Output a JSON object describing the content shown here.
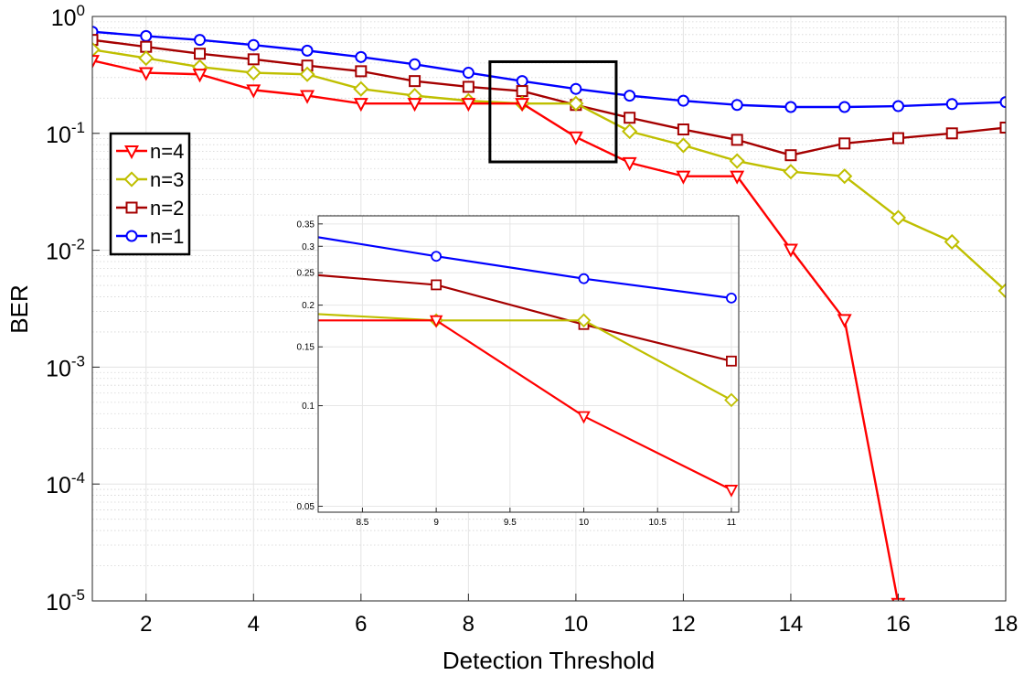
{
  "chart_data": {
    "type": "line",
    "xlabel": "Detection Threshold",
    "ylabel": "BER",
    "xlim": [
      1,
      18
    ],
    "ylim": [
      1e-05,
      1
    ],
    "yscale": "log",
    "grid": true,
    "legend_position": "left",
    "x_ticks": [
      "2",
      "4",
      "6",
      "8",
      "10",
      "12",
      "14",
      "16",
      "18"
    ],
    "y_ticks": [
      {
        "base": "10",
        "exp": "0"
      },
      {
        "base": "10",
        "exp": "-1"
      },
      {
        "base": "10",
        "exp": "-2"
      },
      {
        "base": "10",
        "exp": "-3"
      },
      {
        "base": "10",
        "exp": "-4"
      },
      {
        "base": "10",
        "exp": "-5"
      }
    ],
    "series": [
      {
        "name": "n=4",
        "color": "#ff0000",
        "marker": "triangle-down",
        "x": [
          1,
          2,
          3,
          4,
          5,
          6,
          7,
          8,
          9,
          10,
          11,
          12,
          13,
          14,
          15,
          16
        ],
        "y": [
          0.42,
          0.33,
          0.32,
          0.235,
          0.21,
          0.18,
          0.18,
          0.18,
          0.18,
          0.093,
          0.056,
          0.043,
          0.043,
          0.0102,
          0.00255,
          9.5e-06
        ]
      },
      {
        "name": "n=3",
        "color": "#bfbf00",
        "marker": "diamond",
        "x": [
          1,
          2,
          3,
          4,
          5,
          6,
          7,
          8,
          9,
          10,
          11,
          12,
          13,
          14,
          15,
          16,
          17,
          18
        ],
        "y": [
          0.52,
          0.44,
          0.37,
          0.33,
          0.32,
          0.24,
          0.21,
          0.19,
          0.18,
          0.18,
          0.104,
          0.079,
          0.058,
          0.047,
          0.043,
          0.019,
          0.0118,
          0.0045
        ]
      },
      {
        "name": "n=2",
        "color": "#a50000",
        "marker": "square",
        "x": [
          1,
          2,
          3,
          4,
          5,
          6,
          7,
          8,
          9,
          10,
          11,
          12,
          13,
          14,
          15,
          16,
          17,
          18
        ],
        "y": [
          0.63,
          0.55,
          0.48,
          0.43,
          0.38,
          0.34,
          0.28,
          0.25,
          0.23,
          0.175,
          0.136,
          0.108,
          0.088,
          0.065,
          0.082,
          0.091,
          0.1,
          0.112
        ]
      },
      {
        "name": "n=1",
        "color": "#0000ff",
        "marker": "circle",
        "x": [
          1,
          2,
          3,
          4,
          5,
          6,
          7,
          8,
          9,
          10,
          11,
          12,
          13,
          14,
          15,
          16,
          17,
          18
        ],
        "y": [
          0.74,
          0.68,
          0.63,
          0.57,
          0.51,
          0.45,
          0.39,
          0.33,
          0.28,
          0.24,
          0.21,
          0.19,
          0.175,
          0.168,
          0.168,
          0.171,
          0.178,
          0.185
        ]
      }
    ],
    "inset": {
      "xlim": [
        8.2,
        11.05
      ],
      "ylim": [
        0.048,
        0.37
      ],
      "x_ticks": [
        "8.5",
        "9",
        "9.5",
        "10",
        "10.5",
        "11"
      ],
      "y_ticks": [
        "0.05",
        "0.1",
        "0.15",
        "0.2",
        "0.25",
        "0.3",
        "0.35"
      ]
    },
    "zoom_box": {
      "xlim": [
        8.4,
        10.75
      ],
      "ylim": [
        0.057,
        0.41
      ]
    }
  }
}
